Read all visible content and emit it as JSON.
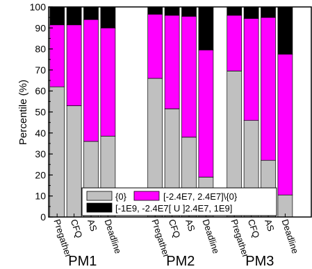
{
  "chart_data": {
    "type": "bar",
    "stacked": true,
    "ylabel": "Percentile (%)",
    "ylim": [
      0,
      100
    ],
    "yticks": [
      "0",
      "10",
      "20",
      "30",
      "40",
      "50",
      "60",
      "70",
      "80",
      "90",
      "100"
    ],
    "grid": false,
    "legend_position": "bottom-right",
    "groups": [
      {
        "name": "PM1",
        "categories": [
          "Pregather",
          "CFQ",
          "AS",
          "Deadline"
        ]
      },
      {
        "name": "PM2",
        "categories": [
          "Pregather",
          "CFQ",
          "AS",
          "Deadline"
        ]
      },
      {
        "name": "PM3",
        "categories": [
          "Pregather",
          "CFQ",
          "AS",
          "Deadline"
        ]
      }
    ],
    "series": [
      {
        "name": "{0}",
        "color": "#c0c0c0",
        "values": [
          62,
          53,
          36,
          38.5,
          66,
          51.5,
          38,
          19,
          69.5,
          46,
          27,
          10.5
        ]
      },
      {
        "name": "[-2.4E7, 2.4E7]\\{0}",
        "color": "#ff00ff",
        "values": [
          29.5,
          38.5,
          58,
          51.5,
          30.5,
          44.5,
          57.5,
          60.5,
          26.5,
          48.5,
          68,
          67
        ]
      },
      {
        "name": "[-1E9, -2.4E7[ U ]2.4E7, 1E9]",
        "color": "#000000",
        "values": [
          8.5,
          8.5,
          6,
          10,
          3.5,
          4,
          4.5,
          20.5,
          4,
          5.5,
          5,
          22.5
        ]
      }
    ]
  }
}
